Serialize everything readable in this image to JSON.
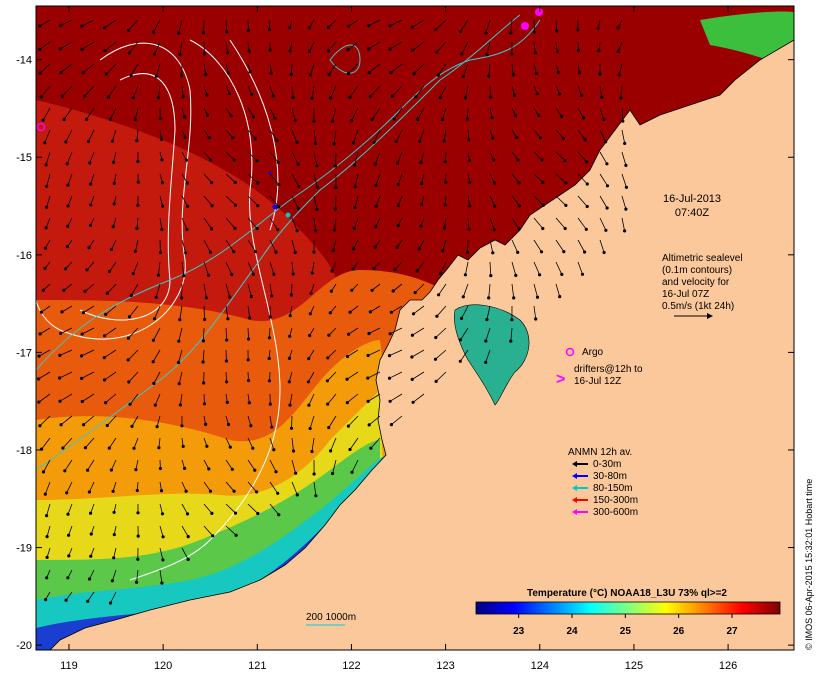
{
  "map": {
    "lon_ticks": [
      "119",
      "120",
      "121",
      "122",
      "123",
      "124",
      "125",
      "126"
    ],
    "lat_ticks": [
      "-14",
      "-15",
      "-16",
      "-17",
      "-18",
      "-19",
      "-20"
    ],
    "lon_range": [
      118.65,
      126.7
    ],
    "lat_range": [
      -20.05,
      -13.45
    ]
  },
  "annotations": {
    "date": "16-Jul-2013",
    "time": "07:40Z",
    "altimetry_lines": [
      "Altimetric sealevel",
      "(0.1m contours)",
      "and velocity for",
      "16-Jul 07Z",
      "0.5m/s (1kt 24h)"
    ],
    "argo_label": "Argo",
    "drifters_lines": [
      "drifters@12h to",
      "16-Jul 12Z"
    ],
    "anmn_title": "ANMN 12h av.",
    "anmn_items": [
      {
        "label": "0-30m",
        "color": "#000000"
      },
      {
        "label": "30-80m",
        "color": "#0000ff"
      },
      {
        "label": "80-150m",
        "color": "#00c8c8"
      },
      {
        "label": "150-300m",
        "color": "#ff0000"
      },
      {
        "label": "300-600m",
        "color": "#ff00ff"
      }
    ],
    "depth_contours_label": "200  1000m",
    "credit": "© IMOS 06-Apr-2015 15:32:01 Hobart time"
  },
  "colorbar": {
    "title": "Temperature (°C) NOAA18_L3U 73% ql>=2",
    "ticks": [
      "23",
      "24",
      "25",
      "26",
      "27"
    ],
    "range": [
      22.2,
      27.9
    ],
    "colors": [
      "#00007f",
      "#0000ff",
      "#0080ff",
      "#00ffff",
      "#80ff80",
      "#ffff00",
      "#ff8000",
      "#ff0000",
      "#7f0000"
    ]
  },
  "colors": {
    "land": "#fbc89b",
    "warm_sea": "#9b0000",
    "sealevel_contour": "#ffffff",
    "isobath": "#3cc8c8",
    "argo": "#ff00ff"
  }
}
